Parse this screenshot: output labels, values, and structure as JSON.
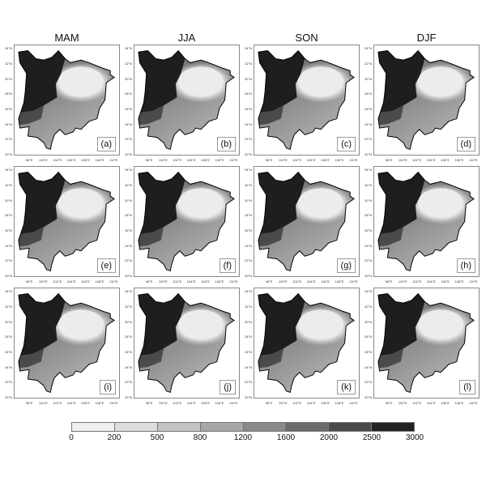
{
  "columns": [
    "MAM",
    "JJA",
    "SON",
    "DJF"
  ],
  "panels": [
    "(a)",
    "(b)",
    "(c)",
    "(d)",
    "(e)",
    "(f)",
    "(g)",
    "(h)",
    "(i)",
    "(j)",
    "(k)",
    "(l)"
  ],
  "lat_ticks": [
    "20°N",
    "22°N",
    "24°N",
    "26°N",
    "28°N",
    "30°N",
    "32°N",
    "34°N"
  ],
  "lon_ticks": [
    "98°E",
    "100°E",
    "102°E",
    "104°E",
    "106°E",
    "108°E",
    "110°E"
  ],
  "colorbar": {
    "levels": [
      "0",
      "200",
      "500",
      "800",
      "1200",
      "1600",
      "2000",
      "2500",
      "3000"
    ],
    "colors": [
      "#efefef",
      "#dcdcdc",
      "#c3c3c3",
      "#a7a7a7",
      "#898989",
      "#6b6b6b",
      "#4a4a4a",
      "#222222"
    ]
  }
}
